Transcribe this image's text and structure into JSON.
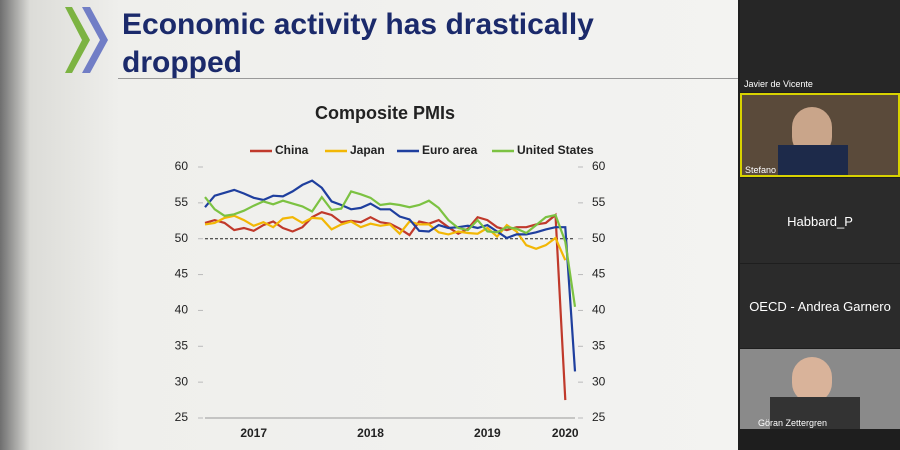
{
  "slide": {
    "title": "Economic activity has drastically dropped"
  },
  "chart_data": {
    "type": "line",
    "title": "Composite PMIs",
    "categories": [
      null,
      null,
      null,
      null,
      null,
      "2017",
      null,
      null,
      null,
      null,
      null,
      null,
      null,
      null,
      null,
      null,
      null,
      "2018",
      null,
      null,
      null,
      null,
      null,
      null,
      null,
      null,
      null,
      null,
      null,
      "2019",
      null,
      null,
      null,
      null,
      null,
      null,
      null,
      "2020",
      null
    ],
    "series": [
      {
        "name": "China",
        "color": "#c0392b",
        "values": [
          52.2,
          52.6,
          52.2,
          51.2,
          51.5,
          51.1,
          51.9,
          52.4,
          51.5,
          51.0,
          51.6,
          53.0,
          53.7,
          53.3,
          52.3,
          52.5,
          52.3,
          53.0,
          52.3,
          52.1,
          51.4,
          50.5,
          52.4,
          52.1,
          52.6,
          51.6,
          50.7,
          51.4,
          53.0,
          52.6,
          51.6,
          51.2,
          51.6,
          51.6,
          52.0,
          52.2,
          53.3,
          27.5,
          null
        ]
      },
      {
        "name": "Japan",
        "color": "#f2b705",
        "values": [
          52.0,
          52.2,
          52.9,
          53.2,
          52.6,
          51.8,
          52.3,
          51.6,
          52.8,
          53.0,
          52.2,
          52.9,
          52.8,
          51.3,
          52.0,
          52.4,
          51.6,
          52.1,
          51.8,
          52.0,
          50.7,
          52.4,
          52.0,
          52.0,
          50.9,
          50.6,
          51.0,
          50.8,
          50.7,
          51.5,
          50.3,
          51.9,
          51.0,
          49.1,
          48.6,
          49.1,
          50.1,
          47.0,
          null
        ]
      },
      {
        "name": "Euro area",
        "color": "#1f3f9e",
        "values": [
          54.4,
          56.0,
          56.4,
          56.8,
          56.3,
          55.7,
          55.4,
          56.0,
          55.9,
          56.6,
          57.5,
          58.1,
          57.1,
          55.2,
          54.7,
          54.1,
          54.3,
          54.9,
          54.1,
          54.1,
          53.1,
          52.7,
          51.1,
          51.0,
          51.9,
          51.5,
          51.6,
          51.8,
          51.5,
          51.9,
          51.0,
          50.1,
          50.6,
          50.6,
          50.9,
          51.3,
          51.6,
          51.6,
          31.5
        ]
      },
      {
        "name": "United States",
        "color": "#7cc242",
        "values": [
          55.8,
          54.1,
          53.2,
          53.4,
          53.9,
          54.6,
          55.2,
          54.8,
          55.3,
          54.9,
          54.5,
          53.8,
          55.8,
          54.0,
          54.2,
          56.6,
          56.2,
          55.7,
          54.7,
          54.9,
          54.7,
          54.4,
          54.7,
          55.3,
          54.3,
          52.6,
          51.5,
          51.2,
          52.6,
          51.0,
          50.9,
          51.6,
          51.4,
          50.8,
          51.9,
          53.0,
          53.3,
          49.6,
          40.5
        ]
      }
    ],
    "ylim": [
      25,
      60
    ],
    "yticks": [
      25,
      30,
      35,
      40,
      45,
      50,
      55,
      60
    ],
    "y2lim": [
      25,
      60
    ],
    "y2ticks": [
      25,
      30,
      35,
      40,
      45,
      50,
      55,
      60
    ],
    "reference_line": 50,
    "grid": false,
    "legend": "top"
  },
  "participants": [
    "Javier de Vicente",
    "Stefano",
    "Habbard_P",
    "OECD - Andrea Garnero",
    "Göran Zettergren"
  ]
}
